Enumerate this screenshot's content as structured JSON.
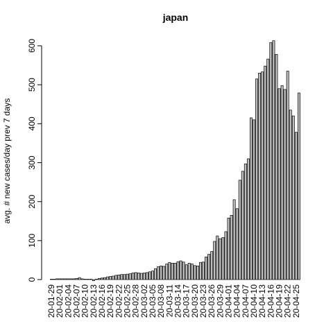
{
  "chart_data": {
    "type": "bar",
    "title": "japan",
    "ylabel": "avg. # new cases/day prev  7  days",
    "categories": [
      "20-01-29",
      null,
      null,
      "20-02-01",
      null,
      null,
      "20-02-04",
      null,
      null,
      "20-02-07",
      null,
      null,
      "20-02-10",
      null,
      null,
      "20-02-13",
      null,
      null,
      "20-02-16",
      null,
      null,
      "20-02-19",
      null,
      null,
      "20-02-22",
      null,
      null,
      "20-02-25",
      null,
      null,
      "20-02-28",
      null,
      null,
      "20-03-02",
      null,
      null,
      "20-03-05",
      null,
      null,
      "20-03-08",
      null,
      null,
      "20-03-11",
      null,
      null,
      "20-03-14",
      null,
      null,
      "20-03-17",
      null,
      null,
      "20-03-20",
      null,
      null,
      "20-03-23",
      null,
      null,
      "20-03-26",
      null,
      null,
      "20-03-29",
      null,
      null,
      "20-04-01",
      null,
      null,
      "20-04-04",
      null,
      null,
      "20-04-07",
      null,
      null,
      "20-04-10",
      null,
      null,
      "20-04-13",
      null,
      null,
      "20-04-16",
      null,
      null,
      "20-04-19",
      null,
      null,
      "20-04-22",
      null,
      null,
      "20-04-25",
      null,
      null
    ],
    "values": [
      1,
      1,
      2,
      2,
      2,
      2,
      2,
      2,
      2,
      3,
      5,
      2,
      1,
      1,
      1,
      -3,
      1,
      3,
      4,
      5,
      7,
      8,
      9,
      11,
      12,
      13,
      13,
      14,
      15,
      17,
      18,
      17,
      16,
      17,
      18,
      20,
      22,
      28,
      33,
      35,
      34,
      40,
      44,
      42,
      42,
      46,
      48,
      45,
      38,
      42,
      40,
      36,
      35,
      44,
      45,
      58,
      65,
      72,
      98,
      112,
      105,
      108,
      123,
      158,
      165,
      205,
      182,
      255,
      278,
      297,
      310,
      415,
      410,
      515,
      530,
      533,
      548,
      566,
      608,
      613,
      578,
      490,
      498,
      488,
      535,
      435,
      420,
      378,
      479,
      null
    ],
    "color": "#bebebe",
    "ylim": [
      0,
      600
    ],
    "yticks": [
      0,
      100,
      200,
      300,
      400,
      500,
      600
    ]
  }
}
